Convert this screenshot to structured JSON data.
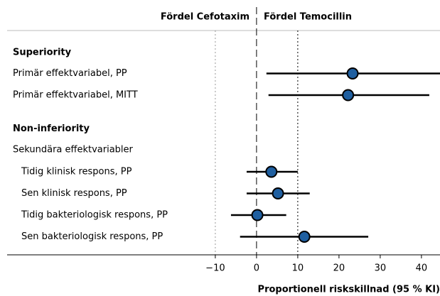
{
  "chart_data": {
    "type": "forest",
    "left_label": "Fördel Cefotaxim",
    "right_label": "Fördel Temocillin",
    "xlabel": "Proportionell riskskillnad (95 % KI)",
    "xlim": [
      -60.5,
      44.5
    ],
    "xticks": [
      {
        "value": -10,
        "label": "−10"
      },
      0,
      10,
      20,
      30,
      40
    ],
    "reference_lines": [
      -10,
      0,
      10
    ],
    "color": "#1f5fa0",
    "sections": [
      {
        "title": "Superiority",
        "rows": [
          {
            "label": "Primär effektvariabel, PP",
            "estimate": 23.3,
            "lower": 2.4,
            "upper": 44.5
          },
          {
            "label": "Primär effektvariabel, MITT",
            "estimate": 22.2,
            "lower": 2.9,
            "upper": 41.9
          }
        ]
      },
      {
        "title": "Non-inferiority",
        "subtitle": "Sekundära effektvariabler",
        "rows": [
          {
            "label": "Tidig klinisk respons, PP",
            "estimate": 3.6,
            "lower": -2.4,
            "upper": 10.0
          },
          {
            "label": "Sen klinisk respons, PP",
            "estimate": 5.2,
            "lower": -2.4,
            "upper": 12.9
          },
          {
            "label": "Tidig bakteriologisk respons, PP",
            "estimate": 0.2,
            "lower": -6.2,
            "upper": 7.2
          },
          {
            "label": "Sen bakteriologisk respons, PP",
            "estimate": 11.6,
            "lower": -4.0,
            "upper": 27.1
          }
        ]
      }
    ]
  }
}
